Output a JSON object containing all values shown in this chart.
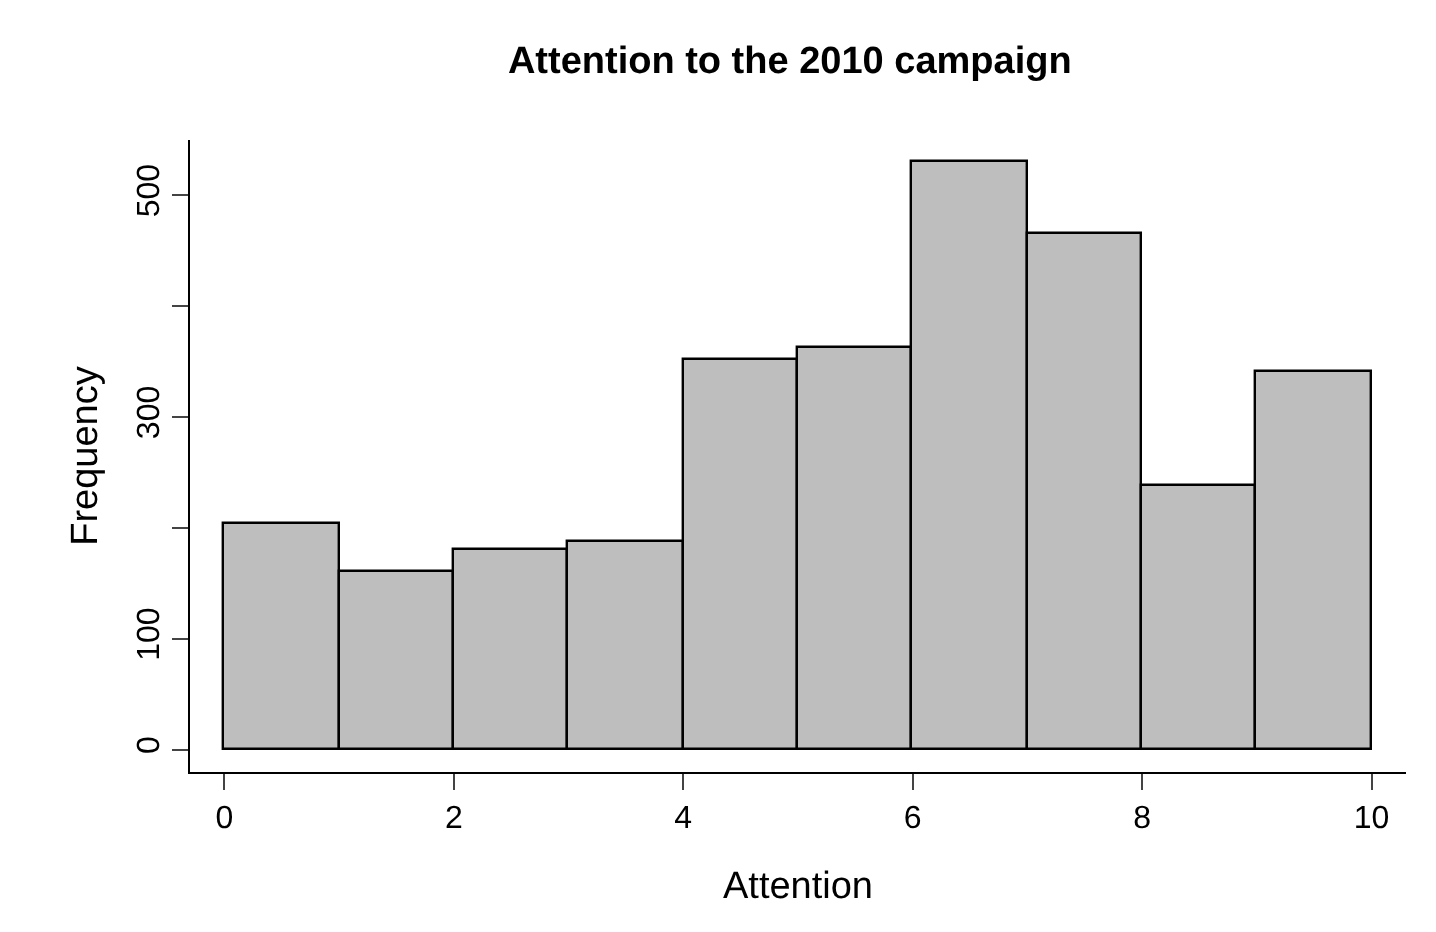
{
  "chart_data": {
    "type": "histogram",
    "title": "Attention to the 2010 campaign",
    "xlabel": "Attention",
    "ylabel": "Frequency",
    "bins": [
      0,
      1,
      2,
      3,
      4,
      5,
      6,
      7,
      8,
      9,
      10
    ],
    "values": [
      203,
      160,
      181,
      187,
      351,
      362,
      531,
      466,
      238,
      341
    ],
    "color": "#bebebe",
    "xlim": [
      -0.3,
      10.3
    ],
    "xticks": [
      0,
      2,
      4,
      6,
      8,
      10
    ],
    "ylim": [
      -20,
      550
    ],
    "yticks": [
      0,
      100,
      {
        "value": 200,
        "label": null
      },
      300,
      {
        "value": 400,
        "label": null
      },
      500
    ]
  }
}
